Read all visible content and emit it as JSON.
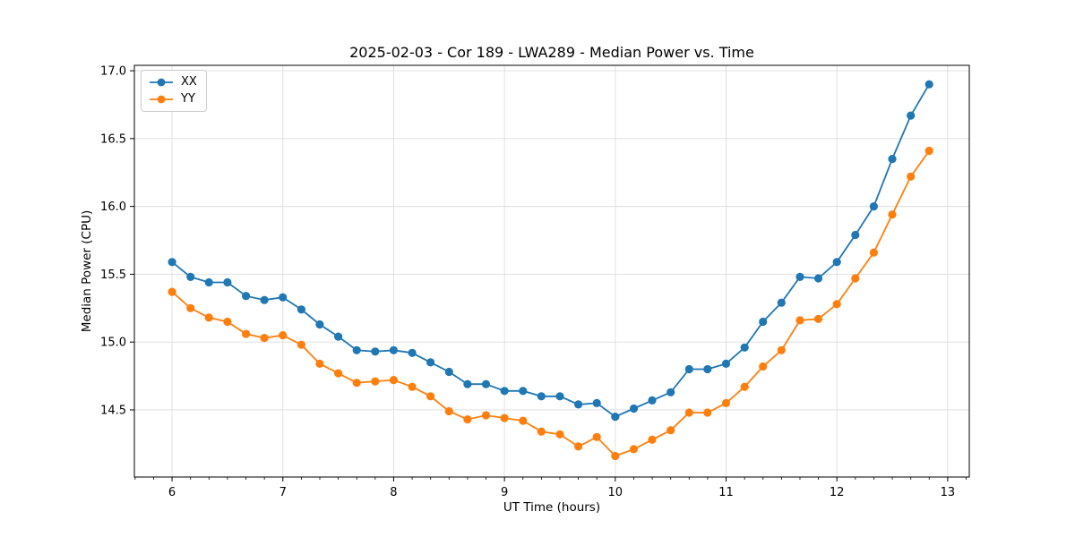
{
  "chart_data": {
    "type": "line",
    "title": "2025-02-03 - Cor 189 - LWA289 - Median Power vs. Time",
    "xlabel": "UT Time (hours)",
    "ylabel": "Median Power (CPU)",
    "grid": true,
    "legend_position": "upper left",
    "xlim": [
      5.66,
      13.195
    ],
    "ylim": [
      14.005,
      17.04
    ],
    "xticks": [
      6,
      7,
      8,
      9,
      10,
      11,
      12,
      13
    ],
    "yticks": [
      14.5,
      15.0,
      15.5,
      16.0,
      16.5,
      17.0
    ],
    "x_minor_step_hours": 0.16667,
    "x": [
      6.0,
      6.167,
      6.333,
      6.5,
      6.667,
      6.833,
      7.0,
      7.167,
      7.333,
      7.5,
      7.667,
      7.833,
      8.0,
      8.167,
      8.333,
      8.5,
      8.667,
      8.833,
      9.0,
      9.167,
      9.333,
      9.5,
      9.667,
      9.833,
      10.0,
      10.167,
      10.333,
      10.5,
      10.667,
      10.833,
      11.0,
      11.167,
      11.333,
      11.5,
      11.667,
      11.833,
      12.0,
      12.167,
      12.333,
      12.5,
      12.667,
      12.833
    ],
    "series": [
      {
        "name": "XX",
        "color": "#1f77b4",
        "values": [
          15.59,
          15.48,
          15.44,
          15.44,
          15.34,
          15.31,
          15.33,
          15.24,
          15.13,
          15.04,
          14.94,
          14.93,
          14.94,
          14.92,
          14.85,
          14.78,
          14.69,
          14.69,
          14.64,
          14.64,
          14.6,
          14.6,
          14.54,
          14.55,
          14.45,
          14.51,
          14.57,
          14.63,
          14.8,
          14.8,
          14.84,
          14.96,
          15.15,
          15.29,
          15.48,
          15.47,
          15.59,
          15.79,
          16.0,
          16.35,
          16.67,
          16.9
        ]
      },
      {
        "name": "YY",
        "color": "#ff7f0e",
        "values": [
          15.37,
          15.25,
          15.18,
          15.15,
          15.06,
          15.03,
          15.05,
          14.98,
          14.84,
          14.77,
          14.7,
          14.71,
          14.72,
          14.67,
          14.6,
          14.49,
          14.43,
          14.46,
          14.44,
          14.42,
          14.34,
          14.32,
          14.23,
          14.3,
          14.16,
          14.21,
          14.28,
          14.35,
          14.48,
          14.48,
          14.55,
          14.67,
          14.82,
          14.94,
          15.16,
          15.17,
          15.28,
          15.47,
          15.66,
          15.94,
          16.22,
          16.41
        ]
      }
    ],
    "style": {
      "grid_color": "#dddddd",
      "spine_color": "#000000",
      "marker_radius": 4.6,
      "line_width": 1.8
    }
  }
}
